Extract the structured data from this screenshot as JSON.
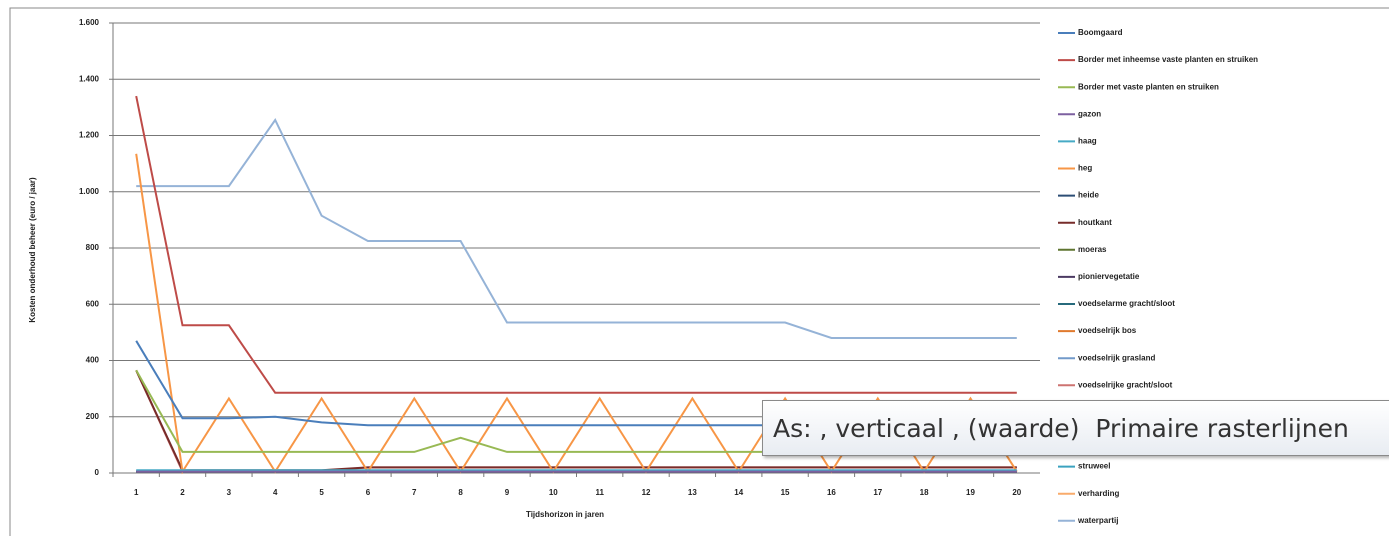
{
  "chart_data": {
    "type": "line",
    "y_label": "Kosten onderhoud beheer (euro / jaar)",
    "x_label": "Tijdshorizon in jaren",
    "categories": [
      "1",
      "2",
      "3",
      "4",
      "5",
      "6",
      "7",
      "8",
      "9",
      "10",
      "11",
      "12",
      "13",
      "14",
      "15",
      "16",
      "17",
      "18",
      "19",
      "20"
    ],
    "ylim": [
      0,
      1600
    ],
    "yticks": [
      0,
      200,
      400,
      600,
      800,
      {
        "value": 1000,
        "label": "1.000"
      },
      {
        "value": 1200,
        "label": "1.200"
      },
      {
        "value": 1400,
        "label": "1.400"
      },
      {
        "value": 1600,
        "label": "1.600"
      }
    ],
    "grid": true,
    "series": [
      {
        "name": "Boomgaard",
        "color": "#4a7ebb",
        "values": [
          470,
          195,
          195,
          200,
          180,
          170,
          170,
          170,
          170,
          170,
          170,
          170,
          170,
          170,
          170,
          170,
          170,
          170,
          170,
          170
        ]
      },
      {
        "name": "Border met inheemse vaste planten en struiken",
        "color": "#be4b48",
        "values": [
          1340,
          525,
          525,
          285,
          285,
          285,
          285,
          285,
          285,
          285,
          285,
          285,
          285,
          285,
          285,
          285,
          285,
          285,
          285,
          285
        ]
      },
      {
        "name": "Border met vaste planten en struiken",
        "color": "#98b954",
        "values": [
          365,
          75,
          75,
          75,
          75,
          75,
          75,
          125,
          75,
          75,
          75,
          75,
          75,
          75,
          75,
          75,
          75,
          75,
          75,
          75
        ]
      },
      {
        "name": "gazon",
        "color": "#7d60a0",
        "values": [
          5,
          5,
          5,
          5,
          5,
          5,
          5,
          5,
          5,
          5,
          5,
          5,
          5,
          5,
          5,
          5,
          5,
          5,
          5,
          5
        ]
      },
      {
        "name": "haag",
        "color": "#46aac5",
        "values": [
          10,
          10,
          10,
          10,
          10,
          10,
          10,
          10,
          10,
          10,
          10,
          10,
          10,
          10,
          10,
          10,
          10,
          10,
          10,
          10
        ]
      },
      {
        "name": "heg",
        "color": "#f79646",
        "values": [
          1135,
          5,
          265,
          5,
          265,
          5,
          265,
          5,
          265,
          5,
          265,
          5,
          265,
          5,
          265,
          5,
          265,
          5,
          265,
          5
        ]
      },
      {
        "name": "heide",
        "color": "#2c4d75",
        "values": [
          5,
          5,
          5,
          5,
          5,
          5,
          5,
          5,
          5,
          5,
          5,
          5,
          5,
          5,
          5,
          5,
          5,
          5,
          5,
          5
        ]
      },
      {
        "name": "houtkant",
        "color": "#772c2a",
        "values": [
          365,
          10,
          10,
          10,
          10,
          20,
          20,
          20,
          20,
          20,
          20,
          20,
          20,
          20,
          20,
          20,
          20,
          20,
          20,
          20
        ]
      },
      {
        "name": "moeras",
        "color": "#5f7530",
        "values": [
          5,
          5,
          5,
          5,
          5,
          5,
          5,
          5,
          5,
          5,
          5,
          5,
          5,
          5,
          5,
          5,
          5,
          5,
          5,
          5
        ]
      },
      {
        "name": "pioniervegetatie",
        "color": "#4b3a62",
        "values": [
          5,
          5,
          5,
          5,
          5,
          5,
          5,
          5,
          5,
          5,
          5,
          5,
          5,
          5,
          5,
          5,
          5,
          5,
          5,
          5
        ]
      },
      {
        "name": "voedselarme gracht/sloot",
        "color": "#276a7c",
        "values": [
          5,
          5,
          5,
          5,
          5,
          5,
          5,
          5,
          5,
          5,
          5,
          5,
          5,
          5,
          5,
          5,
          5,
          5,
          5,
          5
        ]
      },
      {
        "name": "voedselrijk bos",
        "color": "#e07a2e",
        "values": [
          5,
          5,
          5,
          5,
          5,
          5,
          5,
          5,
          5,
          5,
          5,
          5,
          5,
          5,
          5,
          5,
          5,
          5,
          5,
          5
        ]
      },
      {
        "name": "voedselrijk grasland",
        "color": "#729aca",
        "values": [
          5,
          5,
          5,
          5,
          5,
          5,
          5,
          5,
          5,
          5,
          5,
          5,
          5,
          5,
          5,
          5,
          5,
          5,
          5,
          5
        ]
      },
      {
        "name": "voedselrijke gracht/sloot",
        "color": "#cd7371",
        "values": [
          365,
          5,
          5,
          5,
          5,
          20,
          20,
          20,
          20,
          20,
          20,
          20,
          20,
          20,
          20,
          20,
          20,
          20,
          20,
          20
        ]
      },
      {
        "name": "struweel",
        "color": "#3aa2bf",
        "values": [
          5,
          5,
          5,
          5,
          5,
          5,
          5,
          5,
          5,
          5,
          5,
          5,
          5,
          5,
          5,
          5,
          5,
          5,
          5,
          5
        ]
      },
      {
        "name": "verharding",
        "color": "#f9ab6b",
        "values": [
          5,
          5,
          5,
          5,
          5,
          5,
          5,
          5,
          5,
          5,
          5,
          5,
          5,
          5,
          5,
          5,
          5,
          5,
          5,
          5
        ]
      },
      {
        "name": "waterpartij",
        "color": "#95b3d7",
        "values": [
          1020,
          1020,
          1020,
          1255,
          915,
          825,
          825,
          825,
          535,
          535,
          535,
          535,
          535,
          535,
          535,
          480,
          480,
          480,
          480,
          480
        ]
      }
    ]
  },
  "tooltip": "As: , verticaal , (waarde)  Primaire rasterlijnen"
}
